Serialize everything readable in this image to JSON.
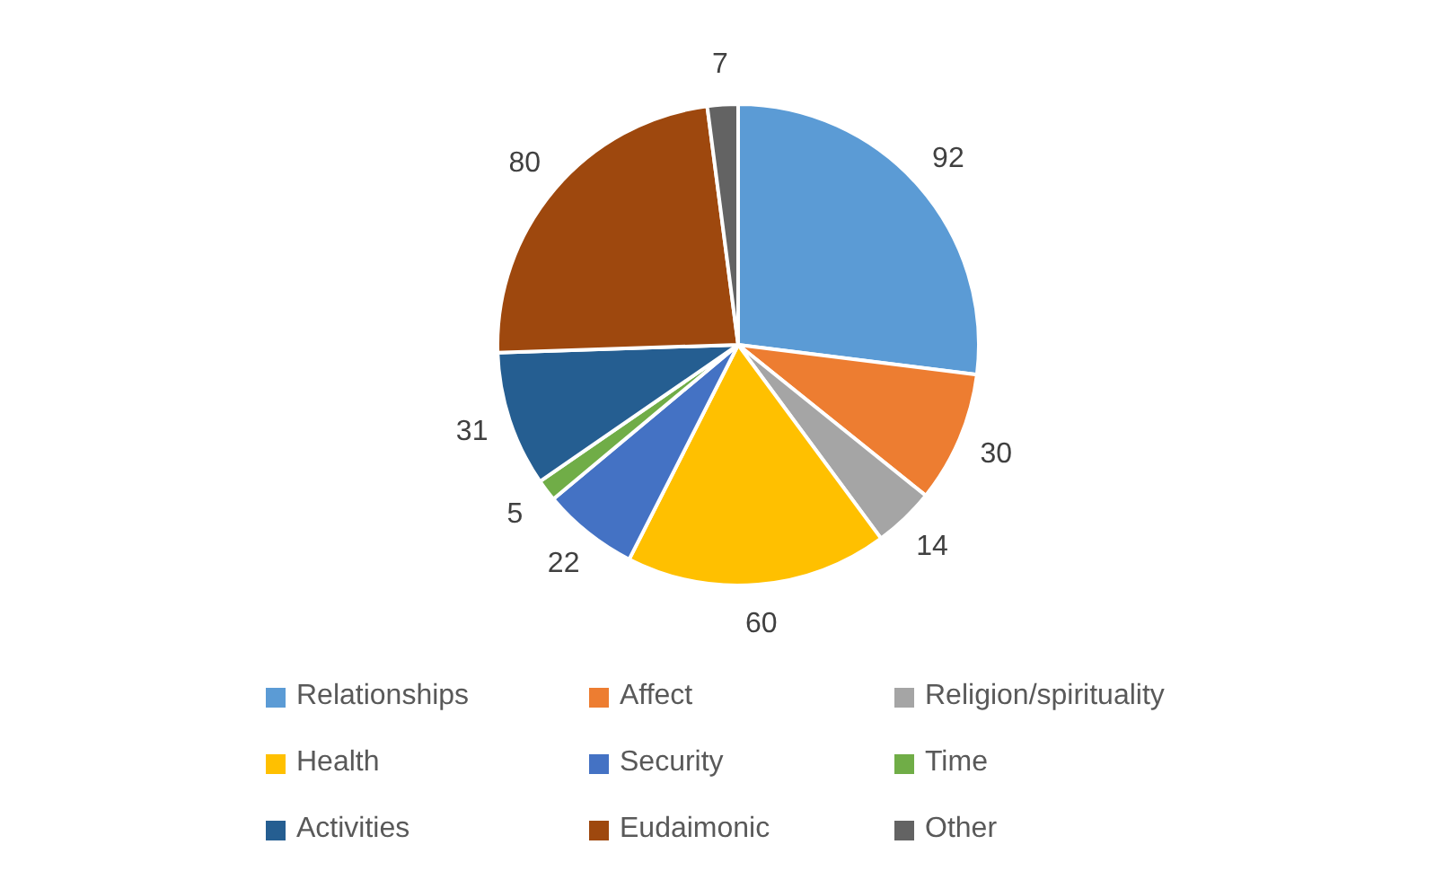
{
  "chart_data": {
    "type": "pie",
    "categories": [
      "Relationships",
      "Affect",
      "Religion/spirituality",
      "Health",
      "Security",
      "Time",
      "Activities",
      "Eudaimonic",
      "Other"
    ],
    "values": [
      92,
      30,
      14,
      60,
      22,
      5,
      31,
      80,
      7
    ],
    "colors": [
      "#5b9bd5",
      "#ed7d31",
      "#a5a5a5",
      "#ffc000",
      "#4472c4",
      "#70ad47",
      "#255e91",
      "#9e480e",
      "#636363"
    ],
    "data_labels": true,
    "legend": "bottom"
  }
}
